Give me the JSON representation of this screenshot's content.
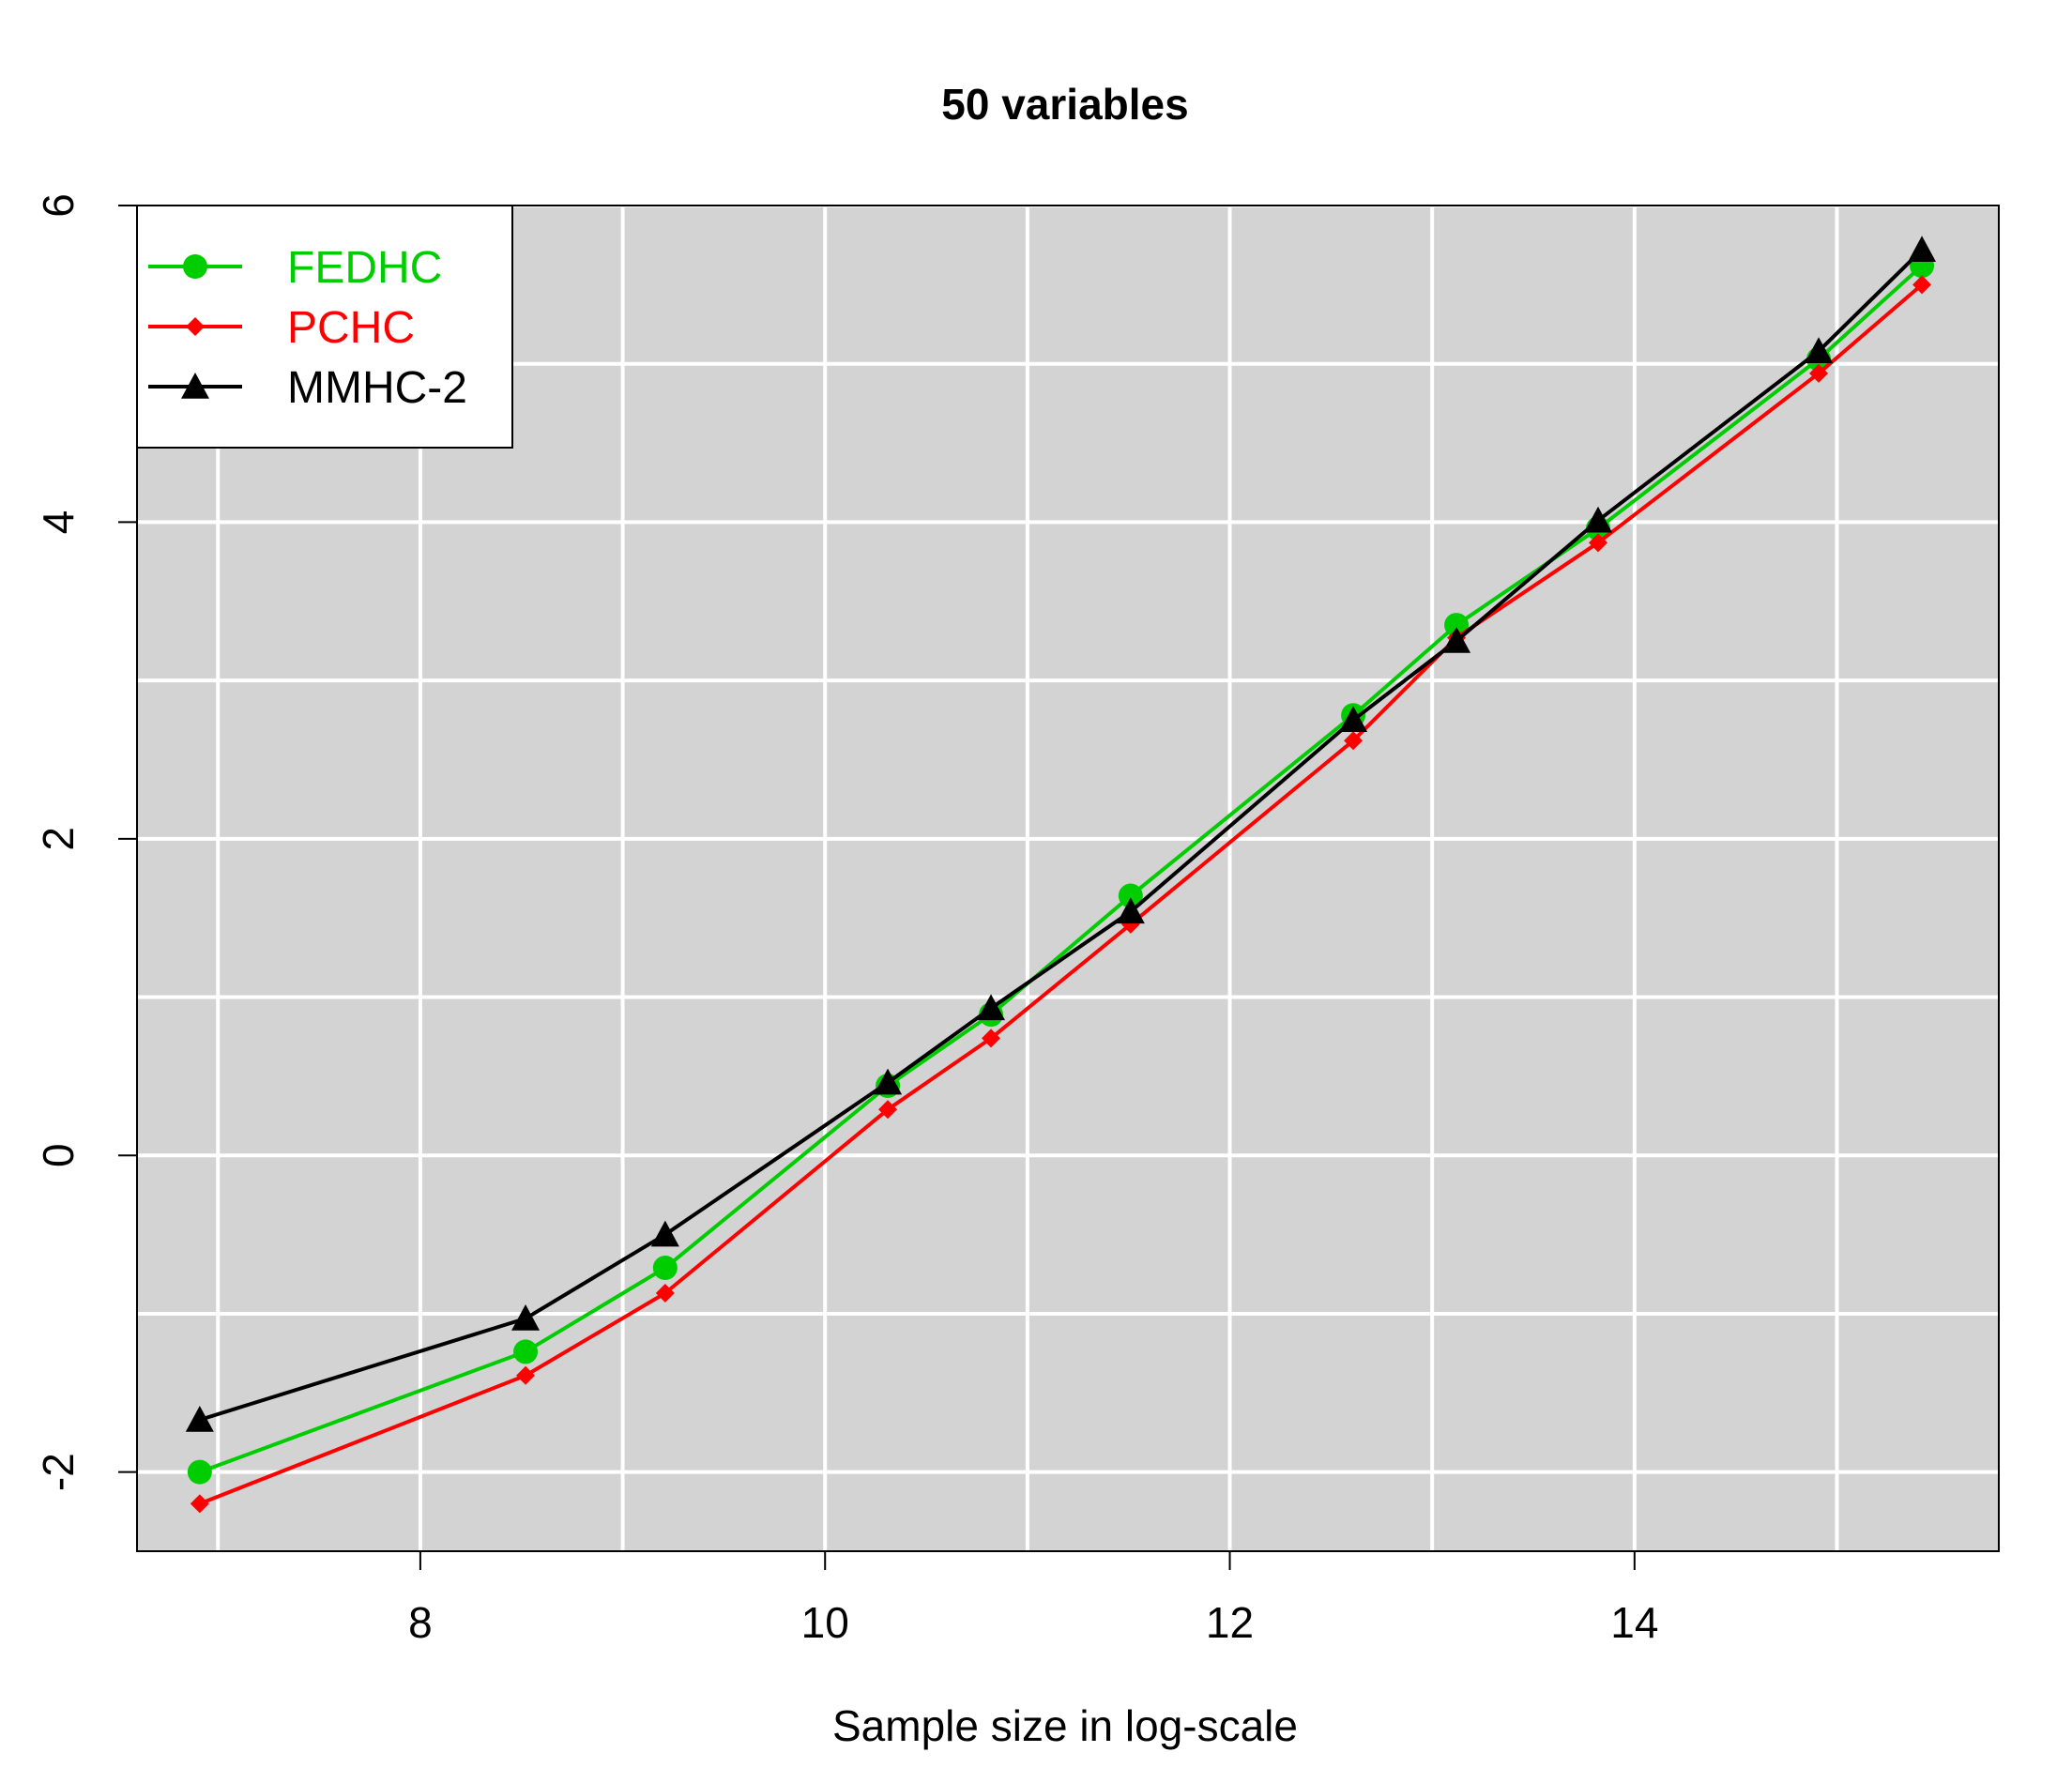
{
  "chart_data": {
    "type": "line",
    "title": "50 variables",
    "xlabel": "Sample size in log-scale",
    "ylabel": "",
    "xlim": [
      6.6,
      15.8
    ],
    "ylim": [
      -2.5,
      6
    ],
    "xticks": [
      8,
      10,
      12,
      14
    ],
    "yticks": [
      -2,
      0,
      2,
      4,
      6
    ],
    "xgrid": [
      7,
      8,
      9,
      10,
      11,
      12,
      13,
      14,
      15
    ],
    "ygrid": [
      -2,
      -1,
      0,
      1,
      2,
      3,
      4,
      5,
      6
    ],
    "grid": true,
    "background": "#d3d3d3",
    "legend_position": "top-left",
    "x": [
      6.91,
      8.52,
      9.21,
      10.31,
      10.82,
      11.51,
      12.61,
      13.12,
      13.82,
      14.91,
      15.42
    ],
    "series": [
      {
        "name": "FEDHC",
        "color": "#00cd00",
        "marker": "circle",
        "values": [
          -2.0,
          -1.24,
          -0.71,
          0.44,
          0.89,
          1.64,
          2.78,
          3.35,
          3.96,
          5.03,
          5.62
        ]
      },
      {
        "name": "PCHC",
        "color": "#ff0000",
        "marker": "diamond",
        "values": [
          -2.2,
          -1.39,
          -0.87,
          0.29,
          0.74,
          1.46,
          2.62,
          3.27,
          3.87,
          4.94,
          5.5
        ]
      },
      {
        "name": "MMHC-2",
        "color": "#000000",
        "marker": "triangle",
        "values": [
          -1.67,
          -1.03,
          -0.5,
          0.46,
          0.93,
          1.54,
          2.75,
          3.25,
          4.01,
          5.08,
          5.72
        ]
      }
    ]
  }
}
